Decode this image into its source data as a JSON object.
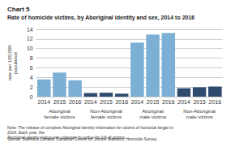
{
  "chart_data": {
    "type": "bar",
    "title": "Rate of homicide victims, by Aboriginal identity and sex, 2014 to 2016",
    "ylabel": "rate per 100,000\npopulation",
    "categories": [
      "2014",
      "2015",
      "2016",
      "2014",
      "2015",
      "2016",
      "2014",
      "2015",
      "2016",
      "2014",
      "2015",
      "2016"
    ],
    "groups": [
      "Aboriginal\nfemale victims",
      "Non-Aboriginal\nfemale victims",
      "Aboriginal\nmale victims",
      "Non-Aboriginal\nmale victims"
    ],
    "values": [
      3.6,
      5.0,
      3.4,
      0.75,
      0.82,
      0.62,
      11.2,
      12.9,
      13.2,
      1.75,
      1.95,
      2.1
    ],
    "colors": [
      "#7bafd4",
      "#7bafd4",
      "#7bafd4",
      "#2e4a6e",
      "#2e4a6e",
      "#2e4a6e",
      "#7bafd4",
      "#7bafd4",
      "#7bafd4",
      "#2e4a6e",
      "#2e4a6e",
      "#2e4a6e"
    ],
    "ylim": [
      0,
      14
    ],
    "yticks": [
      0,
      2,
      4,
      6,
      8,
      10,
      12,
      14
    ],
    "grid": true,
    "annotations": [
      "Chart 5",
      "Note: The release of complete Aboriginal identity information for victims of homicide began in 2014. Each year, the\nAboriginal identity status was unknown by police for 1% of victims.",
      "Source: Statistics Canada, Canadian Centre for Justice Statistics, Homicide Survey."
    ]
  }
}
